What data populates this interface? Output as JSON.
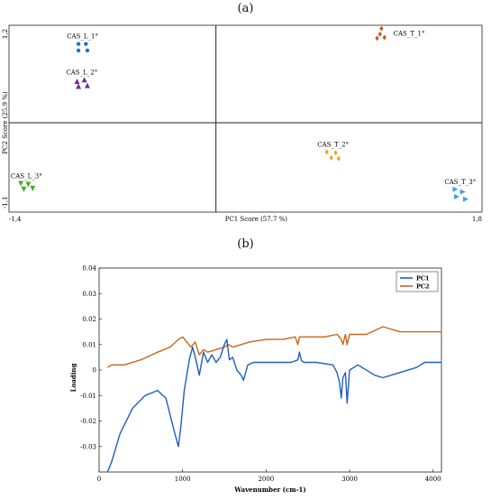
{
  "panel_a_label": "(a)",
  "panel_b_label": "(b)",
  "colors": {
    "cas_l_1": "#1f6fd1",
    "cas_l_2": "#6b2f9a",
    "cas_l_3": "#4aa82a",
    "cas_t_1": "#c8561b",
    "cas_t_2": "#f0a020",
    "cas_t_3": "#3aa0e8",
    "pc1": "#1f5fbf",
    "pc2": "#c8661b"
  },
  "chart_data": [
    {
      "type": "scatter",
      "xlabel": "PC1 Score (57.7 %)",
      "ylabel": "PC2 Score (25.9 %)",
      "xlim": [
        -1.4,
        1.8
      ],
      "ylim": [
        -1.1,
        1.2
      ],
      "x_ticks": [
        "-1,4",
        "1,8"
      ],
      "y_ticks": [
        "1,2",
        "-1,1"
      ],
      "series": [
        {
          "name": "CAS_L_1°",
          "marker": "circle",
          "color_key": "cas_l_1",
          "points": [
            [
              -0.93,
              0.97
            ],
            [
              -0.88,
              0.97
            ],
            [
              -0.93,
              0.89
            ],
            [
              -0.87,
              0.89
            ]
          ]
        },
        {
          "name": "CAS_L_2°",
          "marker": "triangle-up",
          "color_key": "cas_l_2",
          "points": [
            [
              -0.94,
              0.51
            ],
            [
              -0.89,
              0.53
            ],
            [
              -0.93,
              0.45
            ],
            [
              -0.87,
              0.46
            ]
          ]
        },
        {
          "name": "CAS_L_3°",
          "marker": "triangle-down",
          "color_key": "cas_l_3",
          "points": [
            [
              -1.32,
              -0.75
            ],
            [
              -1.27,
              -0.76
            ],
            [
              -1.3,
              -0.82
            ],
            [
              -1.24,
              -0.81
            ]
          ]
        },
        {
          "name": "CAS_T_1°",
          "marker": "diamond",
          "color_key": "cas_t_1",
          "points": [
            [
              1.12,
              1.16
            ],
            [
              1.11,
              1.09
            ],
            [
              1.14,
              1.05
            ],
            [
              1.09,
              1.04
            ]
          ]
        },
        {
          "name": "CAS_T_2°",
          "marker": "diamond",
          "color_key": "cas_t_2",
          "points": [
            [
              0.75,
              -0.36
            ],
            [
              0.81,
              -0.37
            ],
            [
              0.78,
              -0.43
            ],
            [
              0.83,
              -0.44
            ]
          ]
        },
        {
          "name": "CAS_T_3°",
          "marker": "triangle-right",
          "color_key": "cas_t_3",
          "points": [
            [
              1.62,
              -0.82
            ],
            [
              1.67,
              -0.85
            ],
            [
              1.63,
              -0.91
            ],
            [
              1.69,
              -0.94
            ]
          ]
        }
      ]
    },
    {
      "type": "line",
      "xlabel": "Wavenumber (cm-1)",
      "ylabel": "Loading",
      "xlim": [
        0,
        4100
      ],
      "ylim": [
        -0.04,
        0.04
      ],
      "x_ticks": [
        0,
        1000,
        2000,
        3000,
        4000
      ],
      "x_tick_labels": [
        "0",
        "1000",
        "2000",
        "3000",
        "4000"
      ],
      "y_ticks": [
        -0.03,
        -0.02,
        -0.01,
        0,
        0.01,
        0.02,
        0.03,
        0.04
      ],
      "y_tick_labels": [
        "-0.03",
        "-0.02",
        "-0.01",
        "0",
        "0.01",
        "0.02",
        "0.03",
        "0.04"
      ],
      "legend_position": "top-right",
      "series": [
        {
          "name": "PC1",
          "color_key": "pc1",
          "x": [
            100,
            150,
            250,
            400,
            550,
            700,
            800,
            900,
            950,
            980,
            1020,
            1080,
            1120,
            1160,
            1200,
            1250,
            1300,
            1350,
            1400,
            1450,
            1500,
            1530,
            1560,
            1600,
            1650,
            1700,
            1730,
            1780,
            1850,
            2000,
            2200,
            2300,
            2380,
            2400,
            2420,
            2450,
            2600,
            2800,
            2850,
            2880,
            2900,
            2920,
            2950,
            2970,
            3000,
            3100,
            3300,
            3400,
            3600,
            3800,
            3900,
            4000,
            4100
          ],
          "y": [
            -0.04,
            -0.036,
            -0.025,
            -0.015,
            -0.01,
            -0.008,
            -0.011,
            -0.024,
            -0.03,
            -0.022,
            -0.008,
            0.004,
            0.009,
            0.004,
            -0.002,
            0.007,
            0.003,
            0.006,
            0.003,
            0.005,
            0.01,
            0.012,
            0.004,
            0.005,
            0.0,
            -0.002,
            -0.004,
            0.002,
            0.003,
            0.003,
            0.003,
            0.003,
            0.004,
            0.007,
            0.004,
            0.003,
            0.003,
            0.002,
            -0.001,
            -0.005,
            -0.011,
            -0.003,
            -0.001,
            -0.013,
            0.0,
            0.002,
            -0.002,
            -0.003,
            -0.001,
            0.001,
            0.003,
            0.003,
            0.003
          ]
        },
        {
          "name": "PC2",
          "color_key": "pc2",
          "x": [
            100,
            150,
            300,
            500,
            700,
            850,
            950,
            1000,
            1050,
            1100,
            1150,
            1200,
            1250,
            1300,
            1400,
            1500,
            1550,
            1600,
            1700,
            1800,
            2000,
            2200,
            2350,
            2380,
            2400,
            2500,
            2700,
            2850,
            2900,
            2920,
            2950,
            2970,
            3000,
            3200,
            3400,
            3600,
            3800,
            4000,
            4100
          ],
          "y": [
            0.001,
            0.002,
            0.002,
            0.004,
            0.007,
            0.009,
            0.012,
            0.013,
            0.011,
            0.009,
            0.011,
            0.006,
            0.008,
            0.007,
            0.008,
            0.009,
            0.01,
            0.009,
            0.01,
            0.011,
            0.012,
            0.012,
            0.013,
            0.01,
            0.013,
            0.013,
            0.013,
            0.014,
            0.012,
            0.01,
            0.014,
            0.01,
            0.014,
            0.014,
            0.017,
            0.015,
            0.015,
            0.015,
            0.015
          ]
        }
      ]
    }
  ]
}
